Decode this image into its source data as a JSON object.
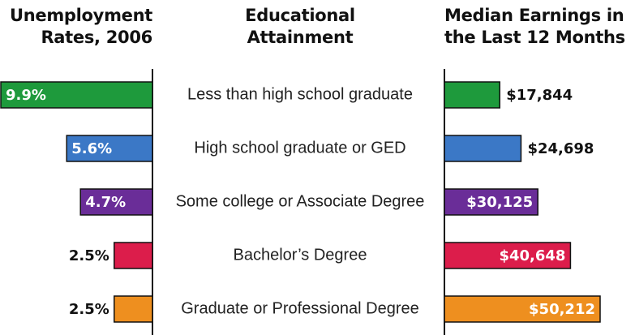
{
  "chart_data": {
    "type": "bar",
    "category_label": "Educational Attainment",
    "categories": [
      "Less than high school graduate",
      "High school graduate or GED",
      "Some college or Associate Degree",
      "Bachelor’s Degree",
      "Graduate or Professional Degree"
    ],
    "colors": [
      "#1e9a3c",
      "#3b78c6",
      "#6a2d98",
      "#dc1d4b",
      "#ee8f1f"
    ],
    "series": [
      {
        "name": "Unemployment Rates, 2006",
        "values": [
          9.9,
          5.6,
          4.7,
          2.5,
          2.5
        ],
        "value_labels": [
          "9.9%",
          "5.6%",
          "4.7%",
          "2.5%",
          "2.5%"
        ]
      },
      {
        "name": "Median Earnings in the Last 12 Months",
        "values": [
          17844,
          24698,
          30125,
          40648,
          50212
        ],
        "value_labels": [
          "$17,844",
          "$24,698",
          "$30,125",
          "$40,648",
          "$50,212"
        ]
      }
    ]
  }
}
